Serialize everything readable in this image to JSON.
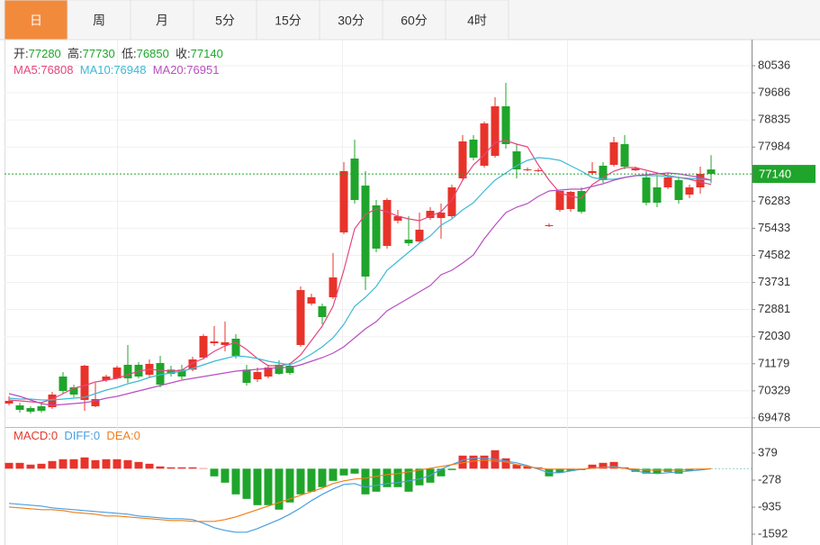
{
  "tabs": [
    "日",
    "周",
    "月",
    "5分",
    "15分",
    "30分",
    "60分",
    "4时"
  ],
  "active_tab": 0,
  "chart_data": [
    {
      "type": "candlestick",
      "up_color": "#e8332a",
      "down_color": "#1fa52b",
      "ohlc_labels": [
        "开:",
        "高:",
        "低:",
        "收:"
      ],
      "ylim": [
        69223,
        81328
      ],
      "yticks": [
        80536,
        79686,
        78835,
        77984,
        76283,
        75433,
        74582,
        73731,
        72881,
        72030,
        71179,
        70329,
        69478
      ],
      "grid": true,
      "open": [
        69931,
        69874,
        69789,
        69846,
        69817,
        70779,
        70440,
        70044,
        69846,
        70666,
        70722,
        71147,
        71147,
        70835,
        71203,
        70995,
        70995,
        70995,
        71373,
        71825,
        71769,
        71967,
        70995,
        70694,
        70779,
        71147,
        71118,
        71769,
        73070,
        72985,
        73268,
        75304,
        77623,
        76774,
        76152,
        74880,
        75671,
        75078,
        75021,
        75756,
        75756,
        75813,
        77001,
        78217,
        77397,
        77708,
        79263,
        77849,
        77283,
        77255,
        75530,
        76011,
        76039,
        76605,
        77170,
        77397,
        77425,
        78075,
        77255,
        77029,
        76718,
        76718,
        76944,
        76492,
        76718,
        77280
      ],
      "close": [
        70015,
        69733,
        69676,
        69704,
        70213,
        70326,
        70213,
        71118,
        70072,
        70779,
        71062,
        70722,
        70779,
        71175,
        70525,
        70864,
        70779,
        71316,
        72052,
        71882,
        71854,
        71429,
        70581,
        70920,
        71062,
        70864,
        70892,
        73494,
        73268,
        72646,
        73890,
        77227,
        76322,
        73918,
        74795,
        76322,
        75813,
        74964,
        75389,
        75982,
        75926,
        76718,
        78160,
        77651,
        78726,
        79263,
        78075,
        77283,
        77283,
        77255,
        75530,
        76605,
        76577,
        75954,
        77227,
        76944,
        78132,
        77368,
        77311,
        76237,
        76237,
        77029,
        76322,
        76718,
        77142,
        77140
      ],
      "high": [
        70157,
        69959,
        69846,
        69931,
        70298,
        70920,
        70525,
        71147,
        70581,
        70835,
        71118,
        71769,
        71231,
        71316,
        71429,
        71118,
        71147,
        71401,
        72108,
        72363,
        72504,
        72108,
        71147,
        71062,
        71147,
        71288,
        71203,
        73607,
        73381,
        73070,
        74653,
        77510,
        78217,
        77227,
        76322,
        76378,
        76011,
        75813,
        75926,
        76096,
        76209,
        76803,
        78358,
        78358,
        78782,
        79546,
        79998,
        78075,
        77340,
        77311,
        75587,
        76605,
        76605,
        76718,
        77510,
        77510,
        78302,
        78358,
        77368,
        77227,
        77086,
        77086,
        77057,
        76803,
        77368,
        77730
      ],
      "low": [
        69874,
        69648,
        69620,
        69648,
        69761,
        70242,
        70128,
        69704,
        69817,
        70609,
        70694,
        70581,
        70722,
        70751,
        70440,
        70779,
        70694,
        70949,
        71316,
        71740,
        71571,
        71344,
        70496,
        70609,
        70722,
        70835,
        70835,
        71712,
        73013,
        72419,
        73211,
        75247,
        76209,
        73494,
        74682,
        74795,
        75587,
        74880,
        74964,
        75700,
        75106,
        75756,
        76944,
        77566,
        77340,
        77651,
        77934,
        77001,
        77227,
        77198,
        75474,
        75954,
        75954,
        75898,
        77114,
        76859,
        77368,
        77283,
        77227,
        76152,
        76096,
        76661,
        76209,
        76378,
        76520,
        76850
      ],
      "series": [
        {
          "name": "MA5:",
          "color": "#e6457e",
          "values": [
            70044,
            70015,
            69987,
            69959,
            70072,
            70242,
            70411,
            70496,
            70609,
            70666,
            70722,
            70835,
            70949,
            71005,
            70977,
            70949,
            70977,
            71203,
            71345,
            71571,
            71740,
            71854,
            71627,
            71345,
            71118,
            71118,
            71175,
            71458,
            71910,
            72363,
            72985,
            74116,
            75417,
            75869,
            76039,
            75954,
            75813,
            75728,
            75671,
            75813,
            75954,
            76322,
            76944,
            77425,
            77736,
            78132,
            78188,
            78075,
            77990,
            77425,
            76944,
            76548,
            76435,
            76378,
            76803,
            77029,
            77227,
            77340,
            77340,
            77255,
            77170,
            77086,
            77029,
            76972,
            76887,
            76808
          ]
        },
        {
          "name": "MA10:",
          "color": "#3cbad6",
          "values": [
            70100,
            70072,
            70072,
            70044,
            70044,
            70072,
            70100,
            70128,
            70242,
            70355,
            70440,
            70553,
            70638,
            70751,
            70835,
            70892,
            70949,
            71033,
            71147,
            71260,
            71345,
            71429,
            71401,
            71345,
            71260,
            71203,
            71147,
            71288,
            71486,
            71712,
            71995,
            72419,
            72985,
            73268,
            73607,
            74116,
            74399,
            74682,
            74964,
            75191,
            75530,
            75728,
            76011,
            76237,
            76605,
            76944,
            77170,
            77397,
            77566,
            77651,
            77623,
            77566,
            77397,
            77227,
            77029,
            76972,
            76972,
            77029,
            77086,
            77086,
            77086,
            77057,
            77029,
            77001,
            76972,
            76948
          ]
        },
        {
          "name": "MA20:",
          "color": "#b84fc0",
          "values": [
            70242,
            70157,
            70044,
            69931,
            69874,
            69902,
            69931,
            69959,
            70015,
            70100,
            70157,
            70242,
            70326,
            70411,
            70496,
            70581,
            70666,
            70722,
            70779,
            70835,
            70892,
            70949,
            70977,
            71005,
            71033,
            71062,
            71062,
            71147,
            71260,
            71373,
            71514,
            71712,
            71995,
            72278,
            72504,
            72843,
            73041,
            73239,
            73437,
            73635,
            73975,
            74116,
            74342,
            74597,
            75106,
            75530,
            75926,
            76096,
            76209,
            76435,
            76605,
            76633,
            76661,
            76661,
            76746,
            76831,
            76944,
            77029,
            77086,
            77114,
            77142,
            77170,
            77142,
            77086,
            77029,
            76951
          ]
        }
      ]
    },
    {
      "type": "macd",
      "ylim": [
        -1855,
        970
      ],
      "yticks": [
        379,
        -278,
        -935,
        -1592
      ],
      "histogram": {
        "name": "MACD:",
        "color": "#e5392b",
        "up_color": "#e8332a",
        "down_color": "#1fa52b",
        "values": [
          142,
          142,
          99,
          120,
          186,
          230,
          230,
          274,
          208,
          230,
          230,
          208,
          164,
          120,
          55,
          33,
          33,
          33,
          11,
          -186,
          -340,
          -624,
          -734,
          -887,
          -887,
          -996,
          -821,
          -624,
          -559,
          -449,
          -296,
          -164,
          -120,
          -624,
          -559,
          -449,
          -449,
          -559,
          -405,
          -340,
          -186,
          -33,
          318,
          318,
          318,
          449,
          252,
          99,
          55,
          33,
          -186,
          -99,
          -55,
          -33,
          99,
          142,
          164,
          33,
          -77,
          -120,
          -120,
          -77,
          -120,
          -55,
          -11,
          0
        ]
      },
      "series": [
        {
          "name": "DIFF:",
          "color": "#4a9fe0",
          "values": [
            -843,
            -865,
            -887,
            -909,
            -953,
            -975,
            -996,
            -1018,
            -1040,
            -1062,
            -1084,
            -1106,
            -1150,
            -1172,
            -1194,
            -1216,
            -1216,
            -1237,
            -1325,
            -1434,
            -1500,
            -1544,
            -1544,
            -1456,
            -1347,
            -1237,
            -1106,
            -953,
            -777,
            -624,
            -493,
            -383,
            -361,
            -449,
            -405,
            -361,
            -340,
            -296,
            -252,
            -164,
            -11,
            99,
            208,
            252,
            252,
            230,
            186,
            142,
            77,
            -11,
            -99,
            -99,
            -55,
            -11,
            11,
            33,
            55,
            11,
            -55,
            -99,
            -120,
            -99,
            -77,
            -55,
            -33,
            0
          ]
        },
        {
          "name": "DEA:",
          "color": "#f07e1c",
          "values": [
            -931,
            -953,
            -975,
            -996,
            -996,
            -1018,
            -1062,
            -1084,
            -1106,
            -1150,
            -1150,
            -1172,
            -1194,
            -1216,
            -1237,
            -1259,
            -1259,
            -1281,
            -1281,
            -1281,
            -1237,
            -1172,
            -1084,
            -996,
            -909,
            -821,
            -734,
            -646,
            -559,
            -471,
            -361,
            -296,
            -252,
            -230,
            -186,
            -142,
            -120,
            -77,
            -33,
            11,
            55,
            99,
            142,
            186,
            208,
            186,
            164,
            99,
            55,
            11,
            -11,
            -11,
            -11,
            -11,
            11,
            33,
            33,
            11,
            -11,
            -33,
            -33,
            -33,
            -33,
            -11,
            -11,
            0
          ]
        }
      ]
    }
  ]
}
